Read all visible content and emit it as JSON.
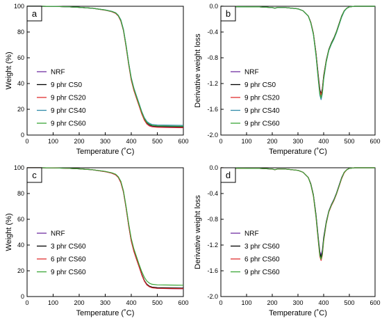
{
  "figure": {
    "series_colors": {
      "NRF": "#7030a0",
      "9 phr CS0": "#000000",
      "9 phr CS20": "#e03030",
      "9 phr CS40": "#2f8aa8",
      "9 phr CS60": "#3aa637",
      "3 phr CS60": "#000000",
      "6 phr CS60": "#e03030"
    }
  },
  "chart_data": [
    {
      "panel": "a",
      "type": "line",
      "xlabel": "Temperature (˚C)",
      "ylabel": "Weight (%)",
      "xlim": [
        0,
        600
      ],
      "ylim": [
        0,
        100
      ],
      "xticks": [
        0,
        100,
        200,
        300,
        400,
        500,
        600
      ],
      "yticks": [
        0,
        20,
        40,
        60,
        80,
        100
      ],
      "grid": false,
      "legend": [
        "NRF",
        "9 phr CS0",
        "9 phr CS20",
        "9 phr CS40",
        "9 phr CS60"
      ],
      "x": [
        0,
        50,
        100,
        150,
        200,
        250,
        300,
        325,
        340,
        350,
        360,
        370,
        380,
        390,
        400,
        410,
        420,
        430,
        440,
        450,
        460,
        470,
        480,
        500,
        550,
        600
      ],
      "series": [
        {
          "name": "NRF",
          "values": [
            100,
            100,
            99.9,
            99.6,
            99.2,
            98.5,
            97,
            95.8,
            94.5,
            92.5,
            88.5,
            81,
            69,
            55,
            43,
            35,
            29,
            23,
            17,
            12,
            9,
            7.5,
            6.8,
            6.3,
            6.1,
            6.0
          ]
        },
        {
          "name": "9 phr CS0",
          "values": [
            100,
            100,
            99.9,
            99.6,
            99.2,
            98.5,
            97.1,
            96,
            94.8,
            92.8,
            89,
            81.5,
            69.5,
            55.5,
            43.5,
            35.5,
            29.5,
            23.5,
            17.5,
            12.5,
            9.5,
            8,
            7.2,
            6.8,
            6.6,
            6.5
          ]
        },
        {
          "name": "9 phr CS20",
          "values": [
            100,
            100,
            99.9,
            99.6,
            99.2,
            98.5,
            97,
            95.8,
            94.5,
            92.5,
            88.5,
            81,
            68.5,
            54.5,
            42.5,
            34.5,
            28.5,
            22.5,
            16.5,
            11.5,
            8.5,
            7,
            6.4,
            6.0,
            5.8,
            5.7
          ]
        },
        {
          "name": "9 phr CS40",
          "values": [
            100,
            100,
            99.9,
            99.6,
            99.2,
            98.5,
            97.2,
            96.1,
            95,
            93,
            89.5,
            82,
            70,
            56,
            44.5,
            36.5,
            30.5,
            24.5,
            18.5,
            13.5,
            10.5,
            9,
            8.2,
            7.8,
            7.6,
            7.5
          ]
        },
        {
          "name": "9 phr CS60",
          "values": [
            100,
            100,
            99.9,
            99.6,
            99.2,
            98.5,
            97.1,
            96,
            94.8,
            92.8,
            89,
            81.5,
            69.5,
            55.5,
            43.8,
            35.8,
            29.8,
            23.8,
            17.8,
            12.8,
            9.8,
            8.3,
            7.5,
            7.1,
            6.9,
            6.8
          ]
        }
      ]
    },
    {
      "panel": "b",
      "type": "line",
      "xlabel": "Temperature (˚C)",
      "ylabel": "Derivative weight loss",
      "xlim": [
        0,
        600
      ],
      "ylim": [
        -2.0,
        0.0
      ],
      "xticks": [
        0,
        100,
        200,
        300,
        400,
        500,
        600
      ],
      "yticks": [
        0.0,
        -0.4,
        -0.8,
        -1.2,
        -1.6,
        -2.0
      ],
      "grid": false,
      "legend": [
        "NRF",
        "9 phr CS0",
        "9 phr CS20",
        "9 phr CS40",
        "9 phr CS60"
      ],
      "x": [
        0,
        50,
        100,
        150,
        200,
        210,
        220,
        250,
        300,
        320,
        340,
        350,
        360,
        370,
        380,
        385,
        390,
        395,
        400,
        410,
        420,
        430,
        440,
        450,
        460,
        470,
        480,
        490,
        500,
        520,
        550,
        600
      ],
      "series": [
        {
          "name": "NRF",
          "values": [
            0,
            -0.005,
            -0.01,
            -0.01,
            -0.02,
            -0.03,
            -0.02,
            -0.02,
            -0.04,
            -0.07,
            -0.15,
            -0.25,
            -0.42,
            -0.72,
            -1.1,
            -1.28,
            -1.38,
            -1.3,
            -1.1,
            -0.85,
            -0.68,
            -0.58,
            -0.5,
            -0.4,
            -0.28,
            -0.16,
            -0.07,
            -0.03,
            -0.01,
            0,
            0,
            0
          ]
        },
        {
          "name": "9 phr CS0",
          "values": [
            0,
            -0.005,
            -0.01,
            -0.01,
            -0.02,
            -0.03,
            -0.02,
            -0.02,
            -0.04,
            -0.07,
            -0.15,
            -0.25,
            -0.42,
            -0.72,
            -1.12,
            -1.3,
            -1.36,
            -1.28,
            -1.08,
            -0.84,
            -0.67,
            -0.57,
            -0.49,
            -0.39,
            -0.27,
            -0.15,
            -0.07,
            -0.03,
            -0.01,
            0,
            0,
            0
          ]
        },
        {
          "name": "9 phr CS20",
          "values": [
            0,
            -0.005,
            -0.01,
            -0.01,
            -0.02,
            -0.03,
            -0.02,
            -0.02,
            -0.04,
            -0.07,
            -0.15,
            -0.25,
            -0.42,
            -0.73,
            -1.13,
            -1.32,
            -1.38,
            -1.3,
            -1.1,
            -0.85,
            -0.68,
            -0.58,
            -0.5,
            -0.4,
            -0.28,
            -0.16,
            -0.07,
            -0.03,
            -0.01,
            0,
            0,
            0
          ]
        },
        {
          "name": "9 phr CS40",
          "values": [
            0,
            -0.005,
            -0.01,
            -0.01,
            -0.02,
            -0.03,
            -0.02,
            -0.02,
            -0.04,
            -0.07,
            -0.15,
            -0.26,
            -0.44,
            -0.76,
            -1.18,
            -1.38,
            -1.45,
            -1.36,
            -1.14,
            -0.87,
            -0.69,
            -0.59,
            -0.51,
            -0.41,
            -0.29,
            -0.17,
            -0.08,
            -0.03,
            -0.01,
            0,
            0,
            0
          ]
        },
        {
          "name": "9 phr CS60",
          "values": [
            0,
            -0.005,
            -0.01,
            -0.01,
            -0.02,
            -0.03,
            -0.02,
            -0.02,
            -0.04,
            -0.07,
            -0.15,
            -0.26,
            -0.43,
            -0.75,
            -1.16,
            -1.36,
            -1.42,
            -1.34,
            -1.12,
            -0.86,
            -0.68,
            -0.58,
            -0.5,
            -0.4,
            -0.28,
            -0.16,
            -0.07,
            -0.03,
            -0.01,
            0,
            0,
            0
          ]
        }
      ]
    },
    {
      "panel": "c",
      "type": "line",
      "xlabel": "Temperature (˚C)",
      "ylabel": "Weight (%)",
      "xlim": [
        0,
        600
      ],
      "ylim": [
        0,
        100
      ],
      "xticks": [
        0,
        100,
        200,
        300,
        400,
        500,
        600
      ],
      "yticks": [
        0,
        20,
        40,
        60,
        80,
        100
      ],
      "grid": false,
      "legend": [
        "NRF",
        "3 phr CS60",
        "6 phr CS60",
        "9 phr CS60"
      ],
      "x": [
        0,
        50,
        100,
        150,
        200,
        250,
        300,
        325,
        340,
        350,
        360,
        370,
        380,
        390,
        400,
        410,
        420,
        430,
        440,
        450,
        460,
        470,
        480,
        500,
        550,
        600
      ],
      "series": [
        {
          "name": "NRF",
          "values": [
            100,
            100,
            99.9,
            99.6,
            99.2,
            98.5,
            97,
            95.8,
            94.5,
            92.5,
            88.5,
            81,
            69,
            55,
            43,
            35,
            29,
            23,
            17,
            12,
            9,
            7.5,
            6.8,
            6.3,
            6.1,
            6.0
          ]
        },
        {
          "name": "3 phr CS60",
          "values": [
            100,
            100,
            99.9,
            99.6,
            99.2,
            98.5,
            97.1,
            96,
            94.8,
            92.8,
            89,
            81.5,
            69.5,
            55.5,
            43.5,
            35.5,
            29.5,
            23.5,
            17.5,
            12.5,
            9.5,
            8,
            7.3,
            6.9,
            6.7,
            6.6
          ]
        },
        {
          "name": "6 phr CS60",
          "values": [
            100,
            100,
            99.9,
            99.6,
            99.2,
            98.5,
            97,
            95.8,
            94.5,
            92.5,
            88.5,
            81,
            68.8,
            54.8,
            43,
            35,
            29,
            23,
            17,
            12,
            9,
            7.5,
            6.8,
            6.4,
            6.2,
            6.1
          ]
        },
        {
          "name": "9 phr CS60",
          "values": [
            100,
            100,
            99.9,
            99.6,
            99.2,
            98.5,
            97.2,
            96.1,
            95,
            93,
            89.5,
            82,
            70,
            56.5,
            45,
            37,
            31,
            25,
            19.5,
            15,
            12,
            10.3,
            9.5,
            9.1,
            8.9,
            8.8
          ]
        }
      ]
    },
    {
      "panel": "d",
      "type": "line",
      "xlabel": "Temperature (˚C)",
      "ylabel": "Derivative weight loss",
      "xlim": [
        0,
        600
      ],
      "ylim": [
        -2.0,
        0.0
      ],
      "xticks": [
        0,
        100,
        200,
        300,
        400,
        500,
        600
      ],
      "yticks": [
        0.0,
        -0.4,
        -0.8,
        -1.2,
        -1.6,
        -2.0
      ],
      "grid": false,
      "legend": [
        "NRF",
        "3 phr CS60",
        "6 phr CS60",
        "9 phr CS60"
      ],
      "x": [
        0,
        50,
        100,
        150,
        200,
        210,
        220,
        250,
        300,
        320,
        340,
        350,
        360,
        370,
        380,
        385,
        390,
        395,
        400,
        410,
        420,
        430,
        440,
        450,
        460,
        470,
        480,
        490,
        500,
        520,
        550,
        600
      ],
      "series": [
        {
          "name": "NRF",
          "values": [
            0,
            -0.005,
            -0.01,
            -0.01,
            -0.02,
            -0.03,
            -0.02,
            -0.02,
            -0.04,
            -0.07,
            -0.15,
            -0.25,
            -0.42,
            -0.72,
            -1.12,
            -1.3,
            -1.36,
            -1.28,
            -1.08,
            -0.84,
            -0.67,
            -0.57,
            -0.49,
            -0.39,
            -0.27,
            -0.15,
            -0.07,
            -0.03,
            -0.01,
            0,
            0,
            0
          ]
        },
        {
          "name": "3 phr CS60",
          "values": [
            0,
            -0.005,
            -0.01,
            -0.01,
            -0.02,
            -0.03,
            -0.02,
            -0.02,
            -0.04,
            -0.07,
            -0.15,
            -0.25,
            -0.42,
            -0.73,
            -1.14,
            -1.33,
            -1.39,
            -1.31,
            -1.1,
            -0.85,
            -0.68,
            -0.58,
            -0.5,
            -0.4,
            -0.28,
            -0.16,
            -0.07,
            -0.03,
            -0.01,
            0,
            0,
            0
          ]
        },
        {
          "name": "6 phr CS60",
          "values": [
            0,
            -0.005,
            -0.01,
            -0.01,
            -0.02,
            -0.03,
            -0.02,
            -0.02,
            -0.04,
            -0.07,
            -0.15,
            -0.26,
            -0.44,
            -0.76,
            -1.18,
            -1.38,
            -1.44,
            -1.36,
            -1.14,
            -0.87,
            -0.69,
            -0.59,
            -0.51,
            -0.41,
            -0.29,
            -0.17,
            -0.08,
            -0.03,
            -0.01,
            0,
            0,
            0
          ]
        },
        {
          "name": "9 phr CS60",
          "values": [
            0,
            -0.005,
            -0.01,
            -0.01,
            -0.02,
            -0.03,
            -0.02,
            -0.02,
            -0.04,
            -0.07,
            -0.15,
            -0.26,
            -0.43,
            -0.75,
            -1.16,
            -1.36,
            -1.42,
            -1.34,
            -1.12,
            -0.86,
            -0.68,
            -0.58,
            -0.5,
            -0.4,
            -0.28,
            -0.16,
            -0.07,
            -0.03,
            -0.01,
            0,
            0,
            0
          ]
        }
      ]
    }
  ]
}
